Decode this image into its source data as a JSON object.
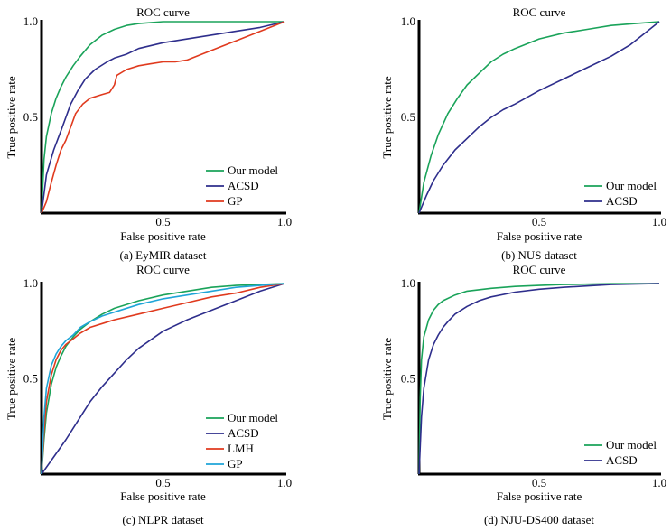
{
  "chart_data": [
    {
      "type": "line",
      "title": "ROC curve",
      "caption": "(a) EyMIR dataset",
      "xlabel": "False positive rate",
      "ylabel": "True positive rate",
      "xlim": [
        0,
        1
      ],
      "ylim": [
        0,
        1
      ],
      "x_ticks": [
        "0.5",
        "1.0"
      ],
      "y_ticks": [
        "0.5",
        "1.0"
      ],
      "grid": false,
      "legend_position": "bottom-right",
      "series": [
        {
          "name": "Our model",
          "color": "#1aa35a",
          "x": [
            0,
            0.01,
            0.02,
            0.04,
            0.06,
            0.08,
            0.1,
            0.13,
            0.16,
            0.2,
            0.25,
            0.3,
            0.35,
            0.4,
            0.5,
            0.6,
            0.8,
            1.0
          ],
          "y": [
            0,
            0.28,
            0.4,
            0.52,
            0.6,
            0.66,
            0.71,
            0.77,
            0.82,
            0.88,
            0.93,
            0.96,
            0.98,
            0.99,
            1.0,
            1.0,
            1.0,
            1.0
          ]
        },
        {
          "name": "ACSD",
          "color": "#2e2e8c",
          "x": [
            0,
            0.02,
            0.05,
            0.08,
            0.1,
            0.12,
            0.15,
            0.18,
            0.22,
            0.27,
            0.3,
            0.35,
            0.4,
            0.5,
            0.6,
            0.7,
            0.8,
            0.9,
            1.0
          ],
          "y": [
            0,
            0.2,
            0.33,
            0.43,
            0.5,
            0.57,
            0.64,
            0.7,
            0.75,
            0.79,
            0.81,
            0.83,
            0.86,
            0.89,
            0.91,
            0.93,
            0.95,
            0.97,
            1.0
          ]
        },
        {
          "name": "GP",
          "color": "#e03a1e",
          "x": [
            0,
            0.02,
            0.04,
            0.06,
            0.08,
            0.1,
            0.12,
            0.14,
            0.17,
            0.2,
            0.25,
            0.28,
            0.3,
            0.31,
            0.35,
            0.4,
            0.45,
            0.5,
            0.55,
            0.6,
            0.7,
            0.8,
            0.9,
            1.0
          ],
          "y": [
            0,
            0.06,
            0.16,
            0.25,
            0.33,
            0.38,
            0.45,
            0.52,
            0.57,
            0.6,
            0.62,
            0.63,
            0.67,
            0.72,
            0.75,
            0.77,
            0.78,
            0.79,
            0.79,
            0.8,
            0.85,
            0.9,
            0.95,
            1.0
          ]
        }
      ]
    },
    {
      "type": "line",
      "title": "ROC curve",
      "caption": "(b) NUS dataset",
      "xlabel": "False positive rate",
      "ylabel": "True positive rate",
      "xlim": [
        0,
        1
      ],
      "ylim": [
        0,
        1
      ],
      "x_ticks": [
        "0.5",
        "1.0"
      ],
      "y_ticks": [
        "0.5",
        "1.0"
      ],
      "grid": false,
      "legend_position": "bottom-right",
      "series": [
        {
          "name": "Our model",
          "color": "#1aa35a",
          "x": [
            0,
            0.02,
            0.05,
            0.08,
            0.12,
            0.16,
            0.2,
            0.25,
            0.3,
            0.35,
            0.4,
            0.5,
            0.6,
            0.7,
            0.8,
            0.9,
            1.0
          ],
          "y": [
            0,
            0.16,
            0.3,
            0.41,
            0.52,
            0.6,
            0.67,
            0.73,
            0.79,
            0.83,
            0.86,
            0.91,
            0.94,
            0.96,
            0.98,
            0.99,
            1.0
          ]
        },
        {
          "name": "ACSD",
          "color": "#2e2e8c",
          "x": [
            0,
            0.03,
            0.06,
            0.1,
            0.15,
            0.2,
            0.25,
            0.3,
            0.35,
            0.4,
            0.5,
            0.6,
            0.7,
            0.8,
            0.88,
            0.94,
            1.0
          ],
          "y": [
            0,
            0.09,
            0.17,
            0.25,
            0.33,
            0.39,
            0.45,
            0.5,
            0.54,
            0.57,
            0.64,
            0.7,
            0.76,
            0.82,
            0.88,
            0.94,
            1.0
          ]
        }
      ]
    },
    {
      "type": "line",
      "title": "ROC curve",
      "caption": "(c) NLPR dataset",
      "xlabel": "False positive rate",
      "ylabel": "True positive rate",
      "xlim": [
        0,
        1
      ],
      "ylim": [
        0,
        1
      ],
      "x_ticks": [
        "0.5",
        "1.0"
      ],
      "y_ticks": [
        "0.5",
        "1.0"
      ],
      "grid": false,
      "legend_position": "bottom-right",
      "series": [
        {
          "name": "Our model",
          "color": "#1aa35a",
          "x": [
            0,
            0.01,
            0.02,
            0.04,
            0.06,
            0.08,
            0.1,
            0.13,
            0.16,
            0.2,
            0.25,
            0.3,
            0.4,
            0.5,
            0.6,
            0.7,
            0.8,
            0.9,
            1.0
          ],
          "y": [
            0,
            0.18,
            0.32,
            0.47,
            0.56,
            0.62,
            0.67,
            0.72,
            0.76,
            0.8,
            0.84,
            0.87,
            0.91,
            0.94,
            0.96,
            0.98,
            0.99,
            0.995,
            1.0
          ]
        },
        {
          "name": "ACSD",
          "color": "#2e2e8c",
          "x": [
            0,
            0.05,
            0.1,
            0.15,
            0.2,
            0.25,
            0.3,
            0.35,
            0.4,
            0.5,
            0.6,
            0.7,
            0.8,
            0.9,
            1.0
          ],
          "y": [
            0,
            0.09,
            0.18,
            0.28,
            0.38,
            0.46,
            0.53,
            0.6,
            0.66,
            0.75,
            0.81,
            0.86,
            0.91,
            0.96,
            1.0
          ]
        },
        {
          "name": "LMH",
          "color": "#e03a1e",
          "x": [
            0,
            0.01,
            0.02,
            0.04,
            0.06,
            0.08,
            0.1,
            0.13,
            0.16,
            0.2,
            0.25,
            0.3,
            0.4,
            0.5,
            0.6,
            0.7,
            0.8,
            0.9,
            1.0
          ],
          "y": [
            0,
            0.22,
            0.38,
            0.52,
            0.6,
            0.65,
            0.68,
            0.71,
            0.74,
            0.77,
            0.79,
            0.81,
            0.84,
            0.87,
            0.9,
            0.93,
            0.95,
            0.98,
            1.0
          ]
        },
        {
          "name": "GP",
          "color": "#1fa5d8",
          "x": [
            0,
            0.01,
            0.02,
            0.04,
            0.06,
            0.08,
            0.1,
            0.13,
            0.16,
            0.2,
            0.25,
            0.3,
            0.4,
            0.5,
            0.6,
            0.7,
            0.8,
            0.9,
            1.0
          ],
          "y": [
            0,
            0.3,
            0.45,
            0.57,
            0.63,
            0.67,
            0.7,
            0.73,
            0.77,
            0.8,
            0.83,
            0.85,
            0.89,
            0.92,
            0.94,
            0.96,
            0.98,
            0.99,
            1.0
          ]
        }
      ]
    },
    {
      "type": "line",
      "title": "ROC curve",
      "caption": "(d) NJU-DS400 dataset",
      "xlabel": "False positive rate",
      "ylabel": "True positive rate",
      "xlim": [
        0,
        1
      ],
      "ylim": [
        0,
        1
      ],
      "x_ticks": [
        "0.5",
        "1.0"
      ],
      "y_ticks": [
        "0.5",
        "1.0"
      ],
      "grid": false,
      "legend_position": "bottom-right",
      "series": [
        {
          "name": "Our model",
          "color": "#1aa35a",
          "x": [
            0,
            0.005,
            0.01,
            0.02,
            0.04,
            0.06,
            0.08,
            0.1,
            0.15,
            0.2,
            0.3,
            0.4,
            0.5,
            0.6,
            0.8,
            1.0
          ],
          "y": [
            0,
            0.4,
            0.6,
            0.72,
            0.81,
            0.86,
            0.89,
            0.91,
            0.94,
            0.96,
            0.975,
            0.985,
            0.99,
            0.995,
            0.999,
            1.0
          ]
        },
        {
          "name": "ACSD",
          "color": "#2e2e8c",
          "x": [
            0,
            0.01,
            0.02,
            0.04,
            0.06,
            0.08,
            0.1,
            0.12,
            0.15,
            0.2,
            0.25,
            0.3,
            0.4,
            0.5,
            0.6,
            0.8,
            1.0
          ],
          "y": [
            0,
            0.3,
            0.45,
            0.6,
            0.68,
            0.73,
            0.77,
            0.8,
            0.84,
            0.88,
            0.91,
            0.93,
            0.955,
            0.97,
            0.98,
            0.995,
            1.0
          ]
        }
      ]
    }
  ]
}
